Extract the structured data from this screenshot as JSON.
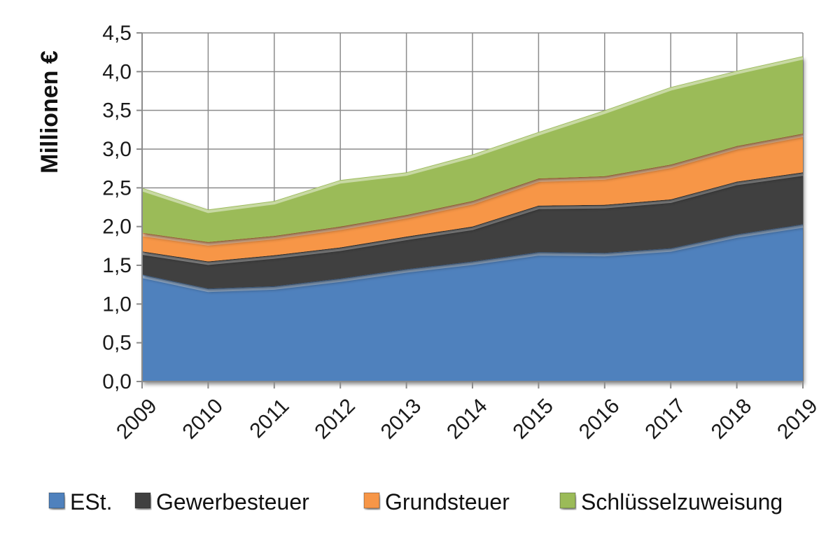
{
  "chart_data": {
    "type": "area",
    "stacked": true,
    "title": "",
    "xlabel": "",
    "ylabel": "Millionen €",
    "x": [
      "2009",
      "2010",
      "2011",
      "2012",
      "2013",
      "2014",
      "2015",
      "2016",
      "2017",
      "2018",
      "2019"
    ],
    "ylim": [
      0,
      4.5
    ],
    "yticks": [
      "0,0",
      "0,5",
      "1,0",
      "1,5",
      "2,0",
      "2,5",
      "3,0",
      "3,5",
      "4,0",
      "4,5"
    ],
    "grid": true,
    "legend_position": "bottom",
    "series": [
      {
        "name": "ESt.",
        "color": "#4f81bd",
        "values": [
          1.38,
          1.2,
          1.23,
          1.33,
          1.45,
          1.55,
          1.67,
          1.66,
          1.72,
          1.9,
          2.03
        ]
      },
      {
        "name": "Gewerbesteuer",
        "color": "#404040",
        "values": [
          0.3,
          0.35,
          0.4,
          0.4,
          0.42,
          0.45,
          0.6,
          0.62,
          0.63,
          0.68,
          0.67
        ]
      },
      {
        "name": "Grundsteuer",
        "color": "#f79646",
        "values": [
          0.24,
          0.25,
          0.25,
          0.27,
          0.28,
          0.33,
          0.35,
          0.37,
          0.45,
          0.46,
          0.5
        ]
      },
      {
        "name": "Schlüsselzuweisung",
        "color": "#9bbb59",
        "values": [
          0.58,
          0.42,
          0.45,
          0.6,
          0.55,
          0.6,
          0.6,
          0.85,
          1.0,
          0.97,
          1.0
        ]
      }
    ]
  }
}
